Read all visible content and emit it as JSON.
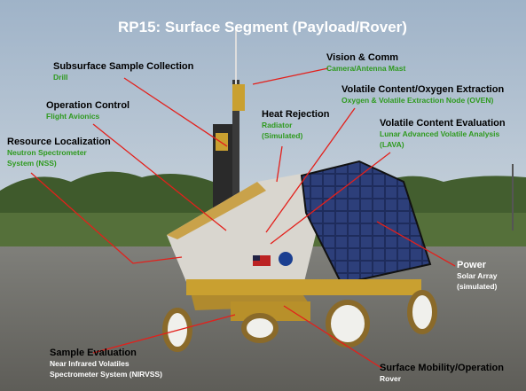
{
  "title": "RP15: Surface Segment (Payload/Rover)",
  "labels": [
    {
      "title": "Subsurface Sample Collection",
      "lines": [
        "Drill"
      ]
    },
    {
      "title": "Vision & Comm",
      "lines": [
        "Camera/Antenna Mast"
      ]
    },
    {
      "title": "Volatile Content/Oxygen Extraction",
      "lines": [
        "Oxygen & Volatile Extraction Node (OVEN)"
      ]
    },
    {
      "title": "Operation Control",
      "lines": [
        "Flight Avionics"
      ]
    },
    {
      "title": "Heat Rejection",
      "lines": [
        "Radiator",
        "(Simulated)"
      ]
    },
    {
      "title": "Volatile Content Evaluation",
      "lines": [
        "Lunar Advanced Volatile Analysis",
        "(LAVA)"
      ]
    },
    {
      "title": "Resource Localization",
      "lines": [
        "Neutron Spectrometer",
        "System (NSS)"
      ]
    },
    {
      "title": "Power",
      "lines": [
        "Solar Array",
        "(simulated)"
      ]
    },
    {
      "title": "Sample Evaluation",
      "lines": [
        "Near Infrared Volatiles",
        "Spectrometer System (NIRVSS)"
      ]
    },
    {
      "title": "Surface Mobility/Operation",
      "lines": [
        "Rover"
      ]
    }
  ]
}
